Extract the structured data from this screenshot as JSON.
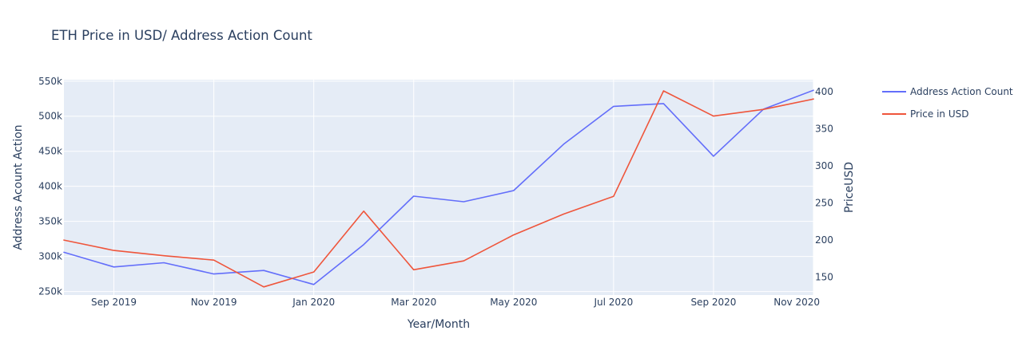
{
  "chart_data": {
    "type": "line",
    "title": "ETH Price in USD/ Address Action Count",
    "xlabel": "Year/Month",
    "ylabel": "Address Acount Action",
    "y2label": "PriceUSD",
    "x": [
      "2019-08",
      "2019-09",
      "2019-10",
      "2019-11",
      "2019-12",
      "2020-01",
      "2020-02",
      "2020-03",
      "2020-04",
      "2020-05",
      "2020-06",
      "2020-07",
      "2020-08",
      "2020-09",
      "2020-10",
      "2020-11"
    ],
    "x_ticks": [
      {
        "value": "2019-09",
        "label": "Sep 2019"
      },
      {
        "value": "2019-11",
        "label": "Nov 2019"
      },
      {
        "value": "2020-01",
        "label": "Jan 2020"
      },
      {
        "value": "2020-03",
        "label": "Mar 2020"
      },
      {
        "value": "2020-05",
        "label": "May 2020"
      },
      {
        "value": "2020-07",
        "label": "Jul 2020"
      },
      {
        "value": "2020-09",
        "label": "Sep 2020"
      },
      {
        "value": "2020-11",
        "label": "Nov 2020"
      }
    ],
    "y_ticks": [
      {
        "value": 250000,
        "label": "250k"
      },
      {
        "value": 300000,
        "label": "300k"
      },
      {
        "value": 350000,
        "label": "350k"
      },
      {
        "value": 400000,
        "label": "400k"
      },
      {
        "value": 450000,
        "label": "450k"
      },
      {
        "value": 500000,
        "label": "500k"
      },
      {
        "value": 550000,
        "label": "550k"
      }
    ],
    "y2_ticks": [
      {
        "value": 150,
        "label": "150"
      },
      {
        "value": 200,
        "label": "200"
      },
      {
        "value": 250,
        "label": "250"
      },
      {
        "value": 300,
        "label": "300"
      },
      {
        "value": 350,
        "label": "350"
      },
      {
        "value": 400,
        "label": "400"
      }
    ],
    "ylim": [
      245000,
      552000
    ],
    "y2lim": [
      126,
      416
    ],
    "grid": true,
    "legend_position": "top-right",
    "series": [
      {
        "name": "Address Action Count",
        "axis": "y",
        "color": "#636efa",
        "values": [
          306000,
          285000,
          291000,
          275000,
          280000,
          260000,
          317000,
          386000,
          378000,
          394000,
          460000,
          514000,
          518000,
          443000,
          510000,
          537000
        ]
      },
      {
        "name": "Price in USD",
        "axis": "y2",
        "color": "#ef553b",
        "values": [
          200,
          186,
          179,
          173,
          137,
          157,
          239,
          160,
          172,
          207,
          235,
          259,
          401,
          367,
          376,
          390
        ]
      }
    ]
  }
}
